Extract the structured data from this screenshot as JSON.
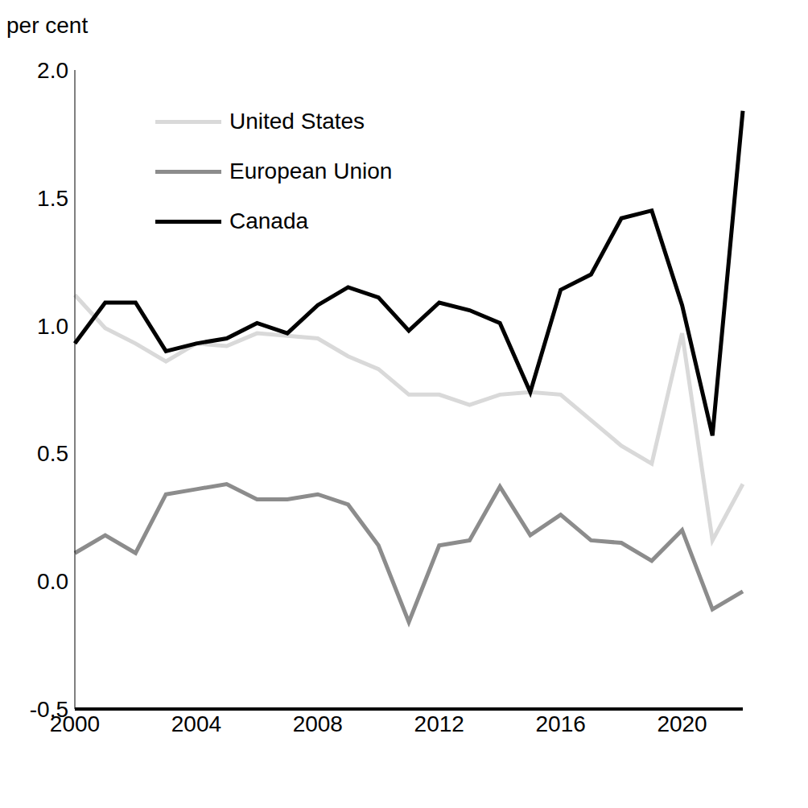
{
  "chart_data": {
    "type": "line",
    "y_label": "per cent",
    "categories": [
      "2000",
      null,
      null,
      null,
      "2004",
      null,
      null,
      null,
      "2008",
      null,
      null,
      null,
      "2012",
      null,
      null,
      null,
      "2016",
      null,
      null,
      null,
      "2020",
      null,
      null
    ],
    "series": [
      {
        "name": "United States",
        "color": "#d9d9d9",
        "values": [
          1.12,
          0.99,
          0.93,
          0.86,
          0.93,
          0.92,
          0.97,
          0.96,
          0.95,
          0.88,
          0.83,
          0.73,
          0.73,
          0.69,
          0.73,
          0.74,
          0.73,
          0.63,
          0.53,
          0.46,
          0.97,
          0.16,
          0.38
        ]
      },
      {
        "name": "European Union",
        "color": "#8c8c8c",
        "values": [
          0.11,
          0.18,
          0.11,
          0.34,
          0.36,
          0.38,
          0.32,
          0.32,
          0.34,
          0.3,
          0.14,
          -0.16,
          0.14,
          0.16,
          0.37,
          0.18,
          0.26,
          0.16,
          0.15,
          0.08,
          0.2,
          -0.11,
          -0.04
        ]
      },
      {
        "name": "Canada",
        "color": "#000000",
        "values": [
          0.93,
          1.09,
          1.09,
          0.9,
          0.93,
          0.95,
          1.01,
          0.97,
          1.08,
          1.15,
          1.11,
          0.98,
          1.09,
          1.06,
          1.01,
          0.74,
          1.14,
          1.2,
          1.42,
          1.45,
          1.08,
          0.57,
          1.84
        ]
      }
    ],
    "ylim": [
      -0.5,
      2.0
    ],
    "yticks": [
      {
        "value": -0.5,
        "label": "-0.5"
      },
      {
        "value": 0,
        "label": "0.0"
      },
      {
        "value": 0.5,
        "label": "0.5"
      },
      {
        "value": 1,
        "label": "1.0"
      },
      {
        "value": 1.5,
        "label": "1.5"
      },
      {
        "value": 2,
        "label": "2.0"
      }
    ],
    "grid": false,
    "legend": "upper left"
  }
}
